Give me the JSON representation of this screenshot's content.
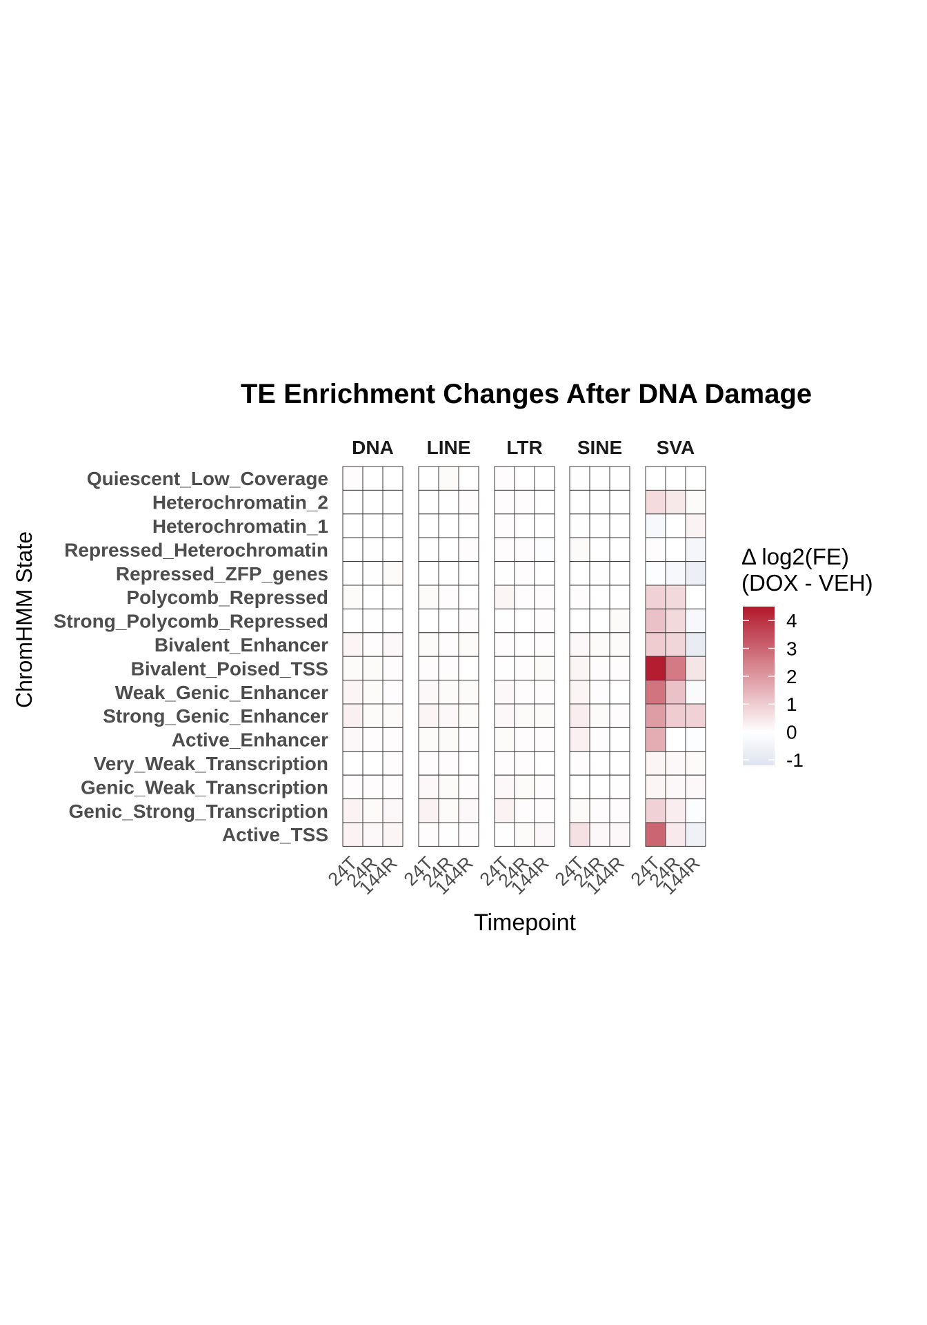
{
  "chart_data": {
    "type": "heatmap",
    "title": "TE Enrichment Changes After DNA Damage",
    "xlabel": "Timepoint",
    "ylabel": "ChromHMM State",
    "facets": [
      "DNA",
      "LINE",
      "LTR",
      "SINE",
      "SVA"
    ],
    "timepoints": [
      "24T",
      "24R",
      "144R"
    ],
    "states": [
      "Quiescent_Low_Coverage",
      "Heterochromatin_2",
      "Heterochromatin_1",
      "Repressed_Heterochromatin",
      "Repressed_ZFP_genes",
      "Polycomb_Repressed",
      "Strong_Polycomb_Repressed",
      "Bivalent_Enhancer",
      "Bivalent_Poised_TSS",
      "Weak_Genic_Enhancer",
      "Strong_Genic_Enhancer",
      "Active_Enhancer",
      "Very_Weak_Transcription",
      "Genic_Weak_Transcription",
      "Genic_Strong_Transcription",
      "Active_TSS"
    ],
    "values": {
      "DNA": [
        [
          0.05,
          0.0,
          0.0
        ],
        [
          0.0,
          0.0,
          0.0
        ],
        [
          0.0,
          0.0,
          0.0
        ],
        [
          0.0,
          -0.05,
          0.0
        ],
        [
          0.0,
          -0.05,
          0.1
        ],
        [
          0.1,
          0.0,
          0.0
        ],
        [
          0.0,
          -0.05,
          0.0
        ],
        [
          0.2,
          0.05,
          0.15
        ],
        [
          0.1,
          0.1,
          0.05
        ],
        [
          0.2,
          0.1,
          0.05
        ],
        [
          0.3,
          0.1,
          0.1
        ],
        [
          0.15,
          0.05,
          0.05
        ],
        [
          0.0,
          0.0,
          0.05
        ],
        [
          0.05,
          0.05,
          0.05
        ],
        [
          0.25,
          0.1,
          0.15
        ],
        [
          0.25,
          0.15,
          0.2
        ]
      ],
      "LINE": [
        [
          0.0,
          0.1,
          0.0
        ],
        [
          0.0,
          0.0,
          0.05
        ],
        [
          0.0,
          0.0,
          0.0
        ],
        [
          -0.05,
          0.0,
          0.05
        ],
        [
          0.0,
          0.0,
          0.0
        ],
        [
          0.1,
          0.05,
          0.0
        ],
        [
          0.0,
          0.0,
          0.05
        ],
        [
          0.1,
          0.05,
          0.1
        ],
        [
          0.05,
          0.05,
          0.0
        ],
        [
          0.15,
          0.1,
          0.1
        ],
        [
          0.2,
          0.15,
          0.1
        ],
        [
          0.1,
          0.1,
          0.05
        ],
        [
          0.05,
          0.05,
          0.0
        ],
        [
          0.15,
          0.1,
          0.05
        ],
        [
          0.25,
          0.1,
          0.15
        ],
        [
          0.05,
          -0.05,
          0.05
        ]
      ],
      "LTR": [
        [
          0.05,
          0.0,
          0.0
        ],
        [
          0.05,
          0.05,
          0.0
        ],
        [
          0.05,
          0.0,
          0.0
        ],
        [
          0.05,
          0.05,
          -0.1
        ],
        [
          -0.05,
          0.05,
          0.0
        ],
        [
          0.2,
          0.05,
          0.05
        ],
        [
          -0.05,
          0.0,
          0.05
        ],
        [
          0.05,
          -0.05,
          0.05
        ],
        [
          -0.05,
          0.05,
          0.1
        ],
        [
          0.15,
          0.05,
          0.05
        ],
        [
          0.15,
          0.1,
          0.1
        ],
        [
          0.1,
          0.05,
          0.05
        ],
        [
          0.05,
          0.05,
          0.0
        ],
        [
          0.15,
          0.1,
          0.05
        ],
        [
          0.25,
          0.05,
          0.05
        ],
        [
          -0.05,
          0.1,
          0.15
        ]
      ],
      "SINE": [
        [
          -0.05,
          0.0,
          0.0
        ],
        [
          0.0,
          0.0,
          0.0
        ],
        [
          -0.05,
          0.0,
          0.0
        ],
        [
          0.1,
          0.0,
          0.0
        ],
        [
          0.0,
          -0.05,
          0.0
        ],
        [
          0.05,
          0.0,
          0.0
        ],
        [
          0.0,
          0.0,
          0.1
        ],
        [
          0.15,
          0.1,
          0.1
        ],
        [
          0.2,
          0.05,
          0.05
        ],
        [
          0.2,
          0.05,
          0.0
        ],
        [
          0.35,
          0.1,
          0.05
        ],
        [
          0.3,
          0.05,
          0.0
        ],
        [
          0.05,
          0.0,
          0.0
        ],
        [
          0.0,
          0.0,
          -0.05
        ],
        [
          0.1,
          0.05,
          0.05
        ],
        [
          0.6,
          0.15,
          0.15
        ]
      ],
      "SVA": [
        [
          0.0,
          0.0,
          0.0
        ],
        [
          0.7,
          0.45,
          0.1
        ],
        [
          -0.3,
          0.0,
          0.25
        ],
        [
          0.05,
          0.0,
          -0.4
        ],
        [
          -0.1,
          -0.3,
          -0.7
        ],
        [
          0.9,
          0.75,
          0.0
        ],
        [
          1.2,
          0.75,
          -0.3
        ],
        [
          1.0,
          0.8,
          -0.8
        ],
        [
          4.4,
          2.6,
          0.5
        ],
        [
          2.7,
          1.2,
          -0.2
        ],
        [
          1.9,
          1.0,
          0.9
        ],
        [
          1.6,
          0.0,
          -0.1
        ],
        [
          0.2,
          0.15,
          0.1
        ],
        [
          0.2,
          0.15,
          0.15
        ],
        [
          0.9,
          0.35,
          -0.1
        ],
        [
          3.0,
          0.4,
          -0.6
        ]
      ]
    },
    "legend": {
      "title_line1": "Δ log2(FE)",
      "title_line2": "(DOX - VEH)",
      "ticks": [
        4,
        3,
        2,
        1,
        0,
        -1
      ],
      "min": -1.2,
      "max": 4.5,
      "low_color": "#dfe3ef",
      "mid_color": "#ffffff",
      "high_color": "#b2182b"
    }
  }
}
